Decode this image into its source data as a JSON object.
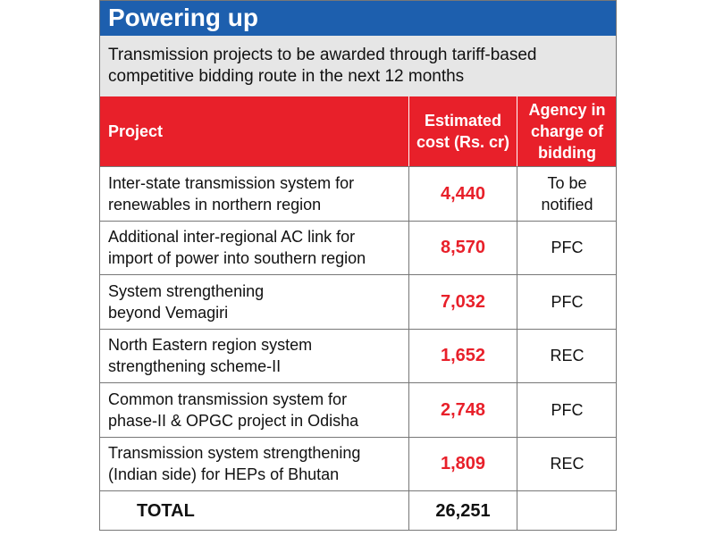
{
  "header": {
    "title": "Powering up",
    "subtitle": [
      "Transmission projects to be awarded through tariff-based",
      "competitive bidding route in the next 12 months"
    ]
  },
  "table": {
    "columns": [
      [
        "Project"
      ],
      [
        "Estimated",
        "cost (Rs. cr)"
      ],
      [
        "Agency in",
        "charge of",
        "bidding"
      ]
    ],
    "rows": [
      {
        "project": [
          "Inter-state transmission system for",
          "renewables in northern region"
        ],
        "cost": "4,440",
        "agency": [
          "To be",
          "notified"
        ]
      },
      {
        "project": [
          "Additional inter-regional AC link for",
          "import of power into southern region"
        ],
        "cost": "8,570",
        "agency": [
          "PFC"
        ]
      },
      {
        "project": [
          "System strengthening",
          "beyond Vemagiri"
        ],
        "cost": "7,032",
        "agency": [
          "PFC"
        ]
      },
      {
        "project": [
          "North Eastern region system",
          "strengthening scheme-II"
        ],
        "cost": "1,652",
        "agency": [
          "REC"
        ]
      },
      {
        "project": [
          "Common transmission system for",
          "phase-II & OPGC project in Odisha"
        ],
        "cost": "2,748",
        "agency": [
          "PFC"
        ]
      },
      {
        "project": [
          "Transmission system strengthening",
          "(Indian side) for HEPs of Bhutan"
        ],
        "cost": "1,809",
        "agency": [
          "REC"
        ]
      }
    ],
    "total": {
      "label": "TOTAL",
      "cost": "26,251"
    }
  }
}
